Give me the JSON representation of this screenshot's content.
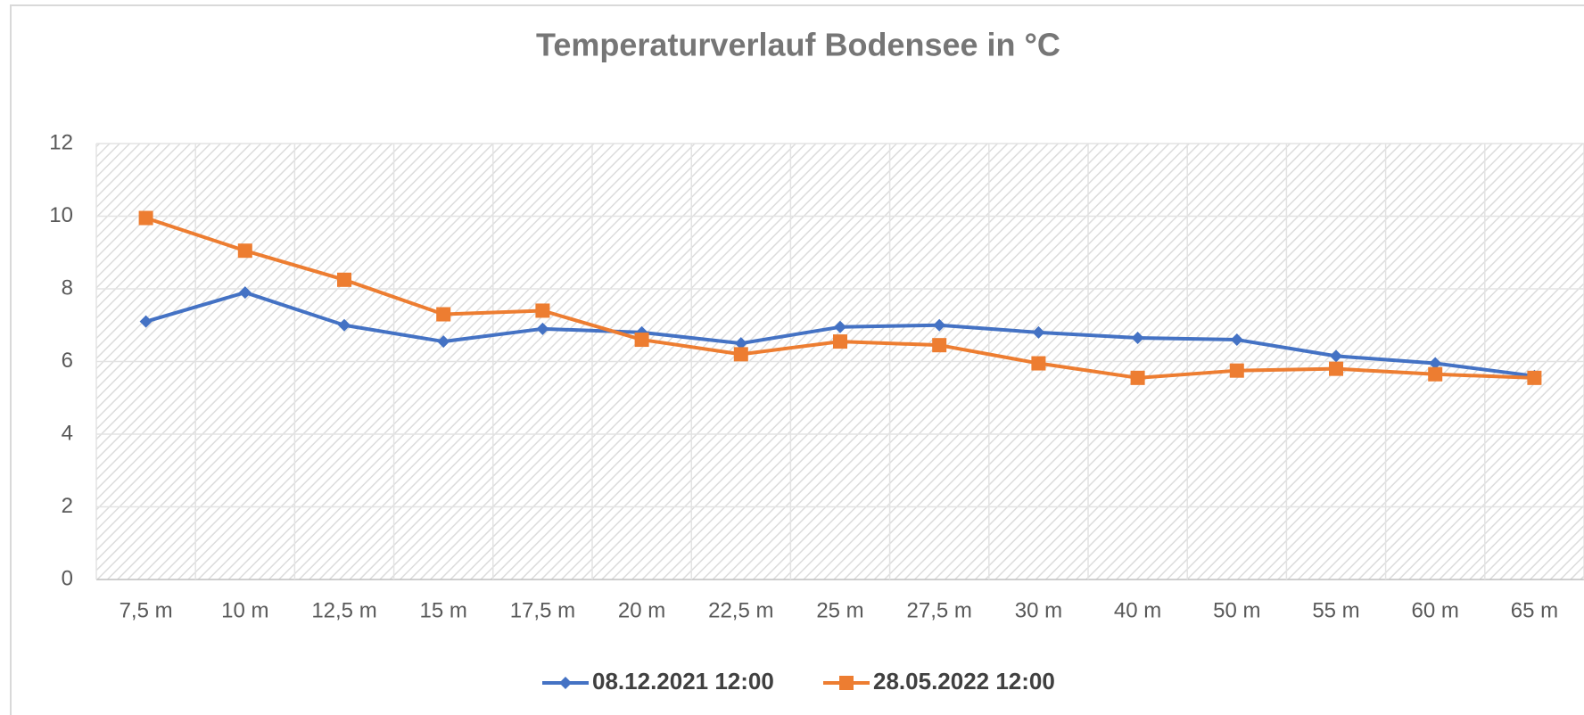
{
  "chart_data": {
    "type": "line",
    "title": "Temperaturverlauf Bodensee in °C",
    "categories": [
      "7,5 m",
      "10 m",
      "12,5 m",
      "15 m",
      "17,5 m",
      "20 m",
      "22,5 m",
      "25 m",
      "27,5 m",
      "30 m",
      "40 m",
      "50 m",
      "55 m",
      "60 m",
      "65 m"
    ],
    "series": [
      {
        "name": "08.12.2021 12:00",
        "color": "#4472c4",
        "marker": "diamond",
        "values": [
          7.1,
          7.9,
          7.0,
          6.55,
          6.9,
          6.8,
          6.5,
          6.95,
          7.0,
          6.8,
          6.65,
          6.6,
          6.15,
          5.95,
          5.6
        ]
      },
      {
        "name": "28.05.2022 12:00",
        "color": "#ed7d31",
        "marker": "square",
        "values": [
          9.95,
          9.05,
          8.25,
          7.3,
          7.4,
          6.6,
          6.2,
          6.55,
          6.45,
          5.95,
          5.55,
          5.75,
          5.8,
          5.65,
          5.55
        ]
      }
    ],
    "ylim": [
      0,
      12
    ],
    "yticks": [
      0,
      2,
      4,
      6,
      8,
      10,
      12
    ],
    "grid": true,
    "legend": "bottom"
  }
}
